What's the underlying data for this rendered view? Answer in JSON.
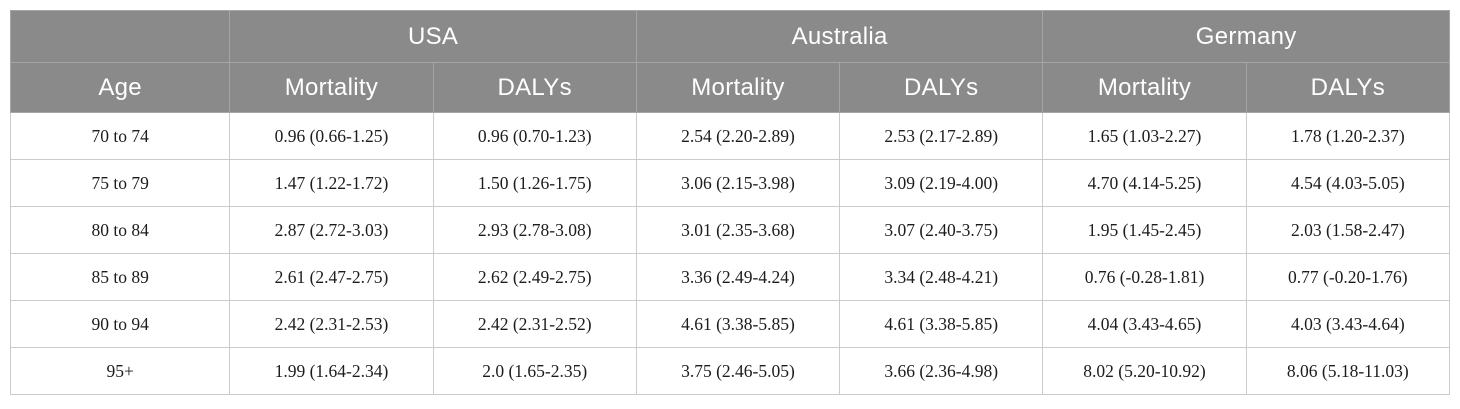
{
  "chart_data": {
    "type": "table",
    "group_headers": [
      {
        "label": "",
        "colspan": 1
      },
      {
        "label": "USA",
        "colspan": 2
      },
      {
        "label": "Australia",
        "colspan": 2
      },
      {
        "label": "Germany",
        "colspan": 2
      }
    ],
    "column_headers": [
      "Age",
      "Mortality",
      "DALYs",
      "Mortality",
      "DALYs",
      "Mortality",
      "DALYs"
    ],
    "rows": [
      [
        "70 to 74",
        "0.96 (0.66-1.25)",
        "0.96 (0.70-1.23)",
        "2.54 (2.20-2.89)",
        "2.53 (2.17-2.89)",
        "1.65 (1.03-2.27)",
        "1.78 (1.20-2.37)"
      ],
      [
        "75 to 79",
        "1.47 (1.22-1.72)",
        "1.50 (1.26-1.75)",
        "3.06 (2.15-3.98)",
        "3.09 (2.19-4.00)",
        "4.70 (4.14-5.25)",
        "4.54 (4.03-5.05)"
      ],
      [
        "80 to 84",
        "2.87 (2.72-3.03)",
        "2.93 (2.78-3.08)",
        "3.01 (2.35-3.68)",
        "3.07 (2.40-3.75)",
        "1.95 (1.45-2.45)",
        "2.03 (1.58-2.47)"
      ],
      [
        "85 to 89",
        "2.61 (2.47-2.75)",
        "2.62 (2.49-2.75)",
        "3.36 (2.49-4.24)",
        "3.34 (2.48-4.21)",
        "0.76 (-0.28-1.81)",
        "0.77 (-0.20-1.76)"
      ],
      [
        "90 to 94",
        "2.42 (2.31-2.53)",
        "2.42 (2.31-2.52)",
        "4.61 (3.38-5.85)",
        "4.61 (3.38-5.85)",
        "4.04 (3.43-4.65)",
        "4.03 (3.43-4.64)"
      ],
      [
        "95+",
        "1.99 (1.64-2.34)",
        "2.0 (1.65-2.35)",
        "3.75 (2.46-5.05)",
        "3.66 (2.36-4.98)",
        "8.02 (5.20-10.92)",
        "8.06 (5.18-11.03)"
      ]
    ],
    "layout": {
      "grid": "on",
      "header_style": "two-row grouped header, white text on gray"
    }
  },
  "colors": {
    "header_bg": "#8a8a8a",
    "header_text": "#ffffff",
    "body_text": "#1c1c1c",
    "body_border": "#cbcbcb",
    "header_border": "#a5a5a5",
    "background": "#ffffff"
  }
}
